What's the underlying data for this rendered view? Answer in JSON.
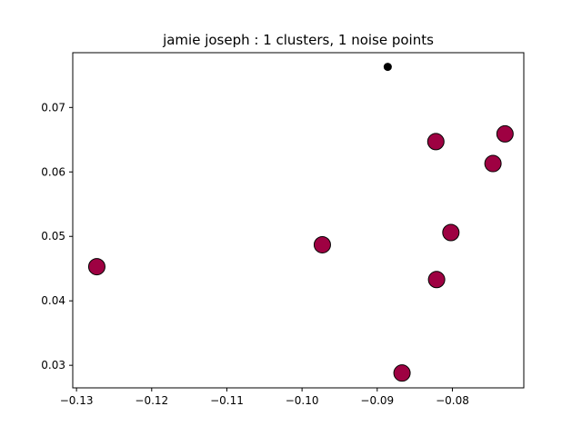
{
  "chart_data": {
    "type": "scatter",
    "title": "jamie joseph : 1 clusters, 1 noise points",
    "xlabel": "",
    "ylabel": "",
    "xlim": [
      -0.1305,
      -0.0705
    ],
    "ylim": [
      0.0265,
      0.0785
    ],
    "xticks": [
      -0.13,
      -0.12,
      -0.11,
      -0.1,
      -0.09,
      -0.08
    ],
    "xtick_labels": [
      "−0.13",
      "−0.12",
      "−0.11",
      "−0.10",
      "−0.09",
      "−0.08"
    ],
    "yticks": [
      0.03,
      0.04,
      0.05,
      0.06,
      0.07
    ],
    "ytick_labels": [
      "0.03",
      "0.04",
      "0.05",
      "0.06",
      "0.07"
    ],
    "grid": false,
    "series": [
      {
        "role": "cluster",
        "color": "#9e0142",
        "edge_color": "#000000",
        "marker": "large-circle",
        "points": [
          {
            "x": -0.1273,
            "y": 0.0453
          },
          {
            "x": -0.0973,
            "y": 0.0487
          },
          {
            "x": -0.0822,
            "y": 0.0647
          },
          {
            "x": -0.0802,
            "y": 0.0506
          },
          {
            "x": -0.0821,
            "y": 0.0433
          },
          {
            "x": -0.0867,
            "y": 0.0288
          },
          {
            "x": -0.0746,
            "y": 0.0613
          },
          {
            "x": -0.073,
            "y": 0.0659
          }
        ]
      },
      {
        "role": "noise",
        "color": "#000000",
        "marker": "small-dot",
        "points": [
          {
            "x": -0.0886,
            "y": 0.0763
          }
        ]
      }
    ]
  }
}
